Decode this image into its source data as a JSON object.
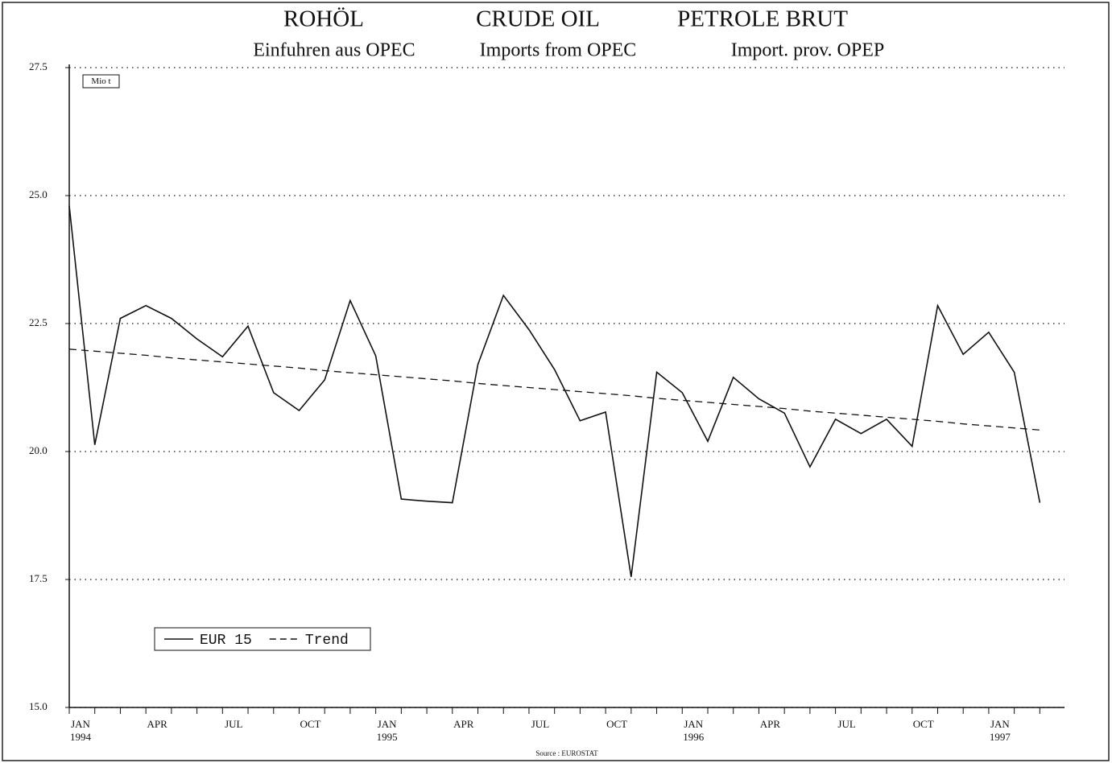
{
  "chart_data": {
    "type": "line",
    "titles": [
      "ROHÖL",
      "CRUDE OIL",
      "PETROLE BRUT"
    ],
    "subtitles": [
      "Einfuhren aus OPEC",
      "Imports from OPEC",
      "Import. prov. OPEP"
    ],
    "unit": "Mio t",
    "source": "Source : EUROSTAT",
    "categories": [
      "JAN 1994",
      null,
      null,
      "APR",
      null,
      null,
      "JUL",
      null,
      null,
      "OCT",
      null,
      null,
      "JAN 1995",
      null,
      null,
      "APR",
      null,
      null,
      "JUL",
      null,
      null,
      "OCT",
      null,
      null,
      "JAN 1996",
      null,
      null,
      "APR",
      null,
      null,
      "JUL",
      null,
      null,
      "OCT",
      null,
      null,
      "JAN 1997",
      null,
      null
    ],
    "series": [
      {
        "name": "EUR 15",
        "color": "#111111",
        "dash": "solid",
        "values": [
          24.8,
          20.13,
          22.6,
          22.85,
          22.6,
          22.2,
          21.85,
          22.45,
          21.15,
          20.8,
          21.4,
          22.95,
          21.87,
          19.07,
          19.03,
          19.0,
          21.7,
          23.05,
          22.38,
          21.6,
          20.6,
          20.77,
          17.55,
          21.55,
          21.15,
          20.2,
          21.45,
          21.03,
          20.75,
          19.7,
          20.63,
          20.35,
          20.63,
          20.1,
          22.85,
          21.9,
          22.33,
          21.55,
          19.0
        ]
      },
      {
        "name": "Trend",
        "color": "#111111",
        "dash": "dashed",
        "values": [
          22.0,
          21.96,
          21.92,
          21.88,
          21.83,
          21.79,
          21.75,
          21.71,
          21.67,
          21.63,
          21.58,
          21.54,
          21.5,
          21.46,
          21.42,
          21.38,
          21.33,
          21.29,
          21.25,
          21.21,
          21.17,
          21.13,
          21.09,
          21.04,
          21.0,
          20.96,
          20.92,
          20.88,
          20.84,
          20.79,
          20.75,
          20.71,
          20.67,
          20.63,
          20.59,
          20.54,
          20.5,
          20.46,
          20.42
        ]
      }
    ],
    "ylim": [
      15,
      27.5
    ],
    "yticks": [
      {
        "value": 15,
        "label": "15.0"
      },
      17.5,
      {
        "value": 20,
        "label": "20.0"
      },
      22.5,
      {
        "value": 25,
        "label": "25.0"
      },
      27.5
    ],
    "grid": true,
    "legend": "lower left"
  }
}
